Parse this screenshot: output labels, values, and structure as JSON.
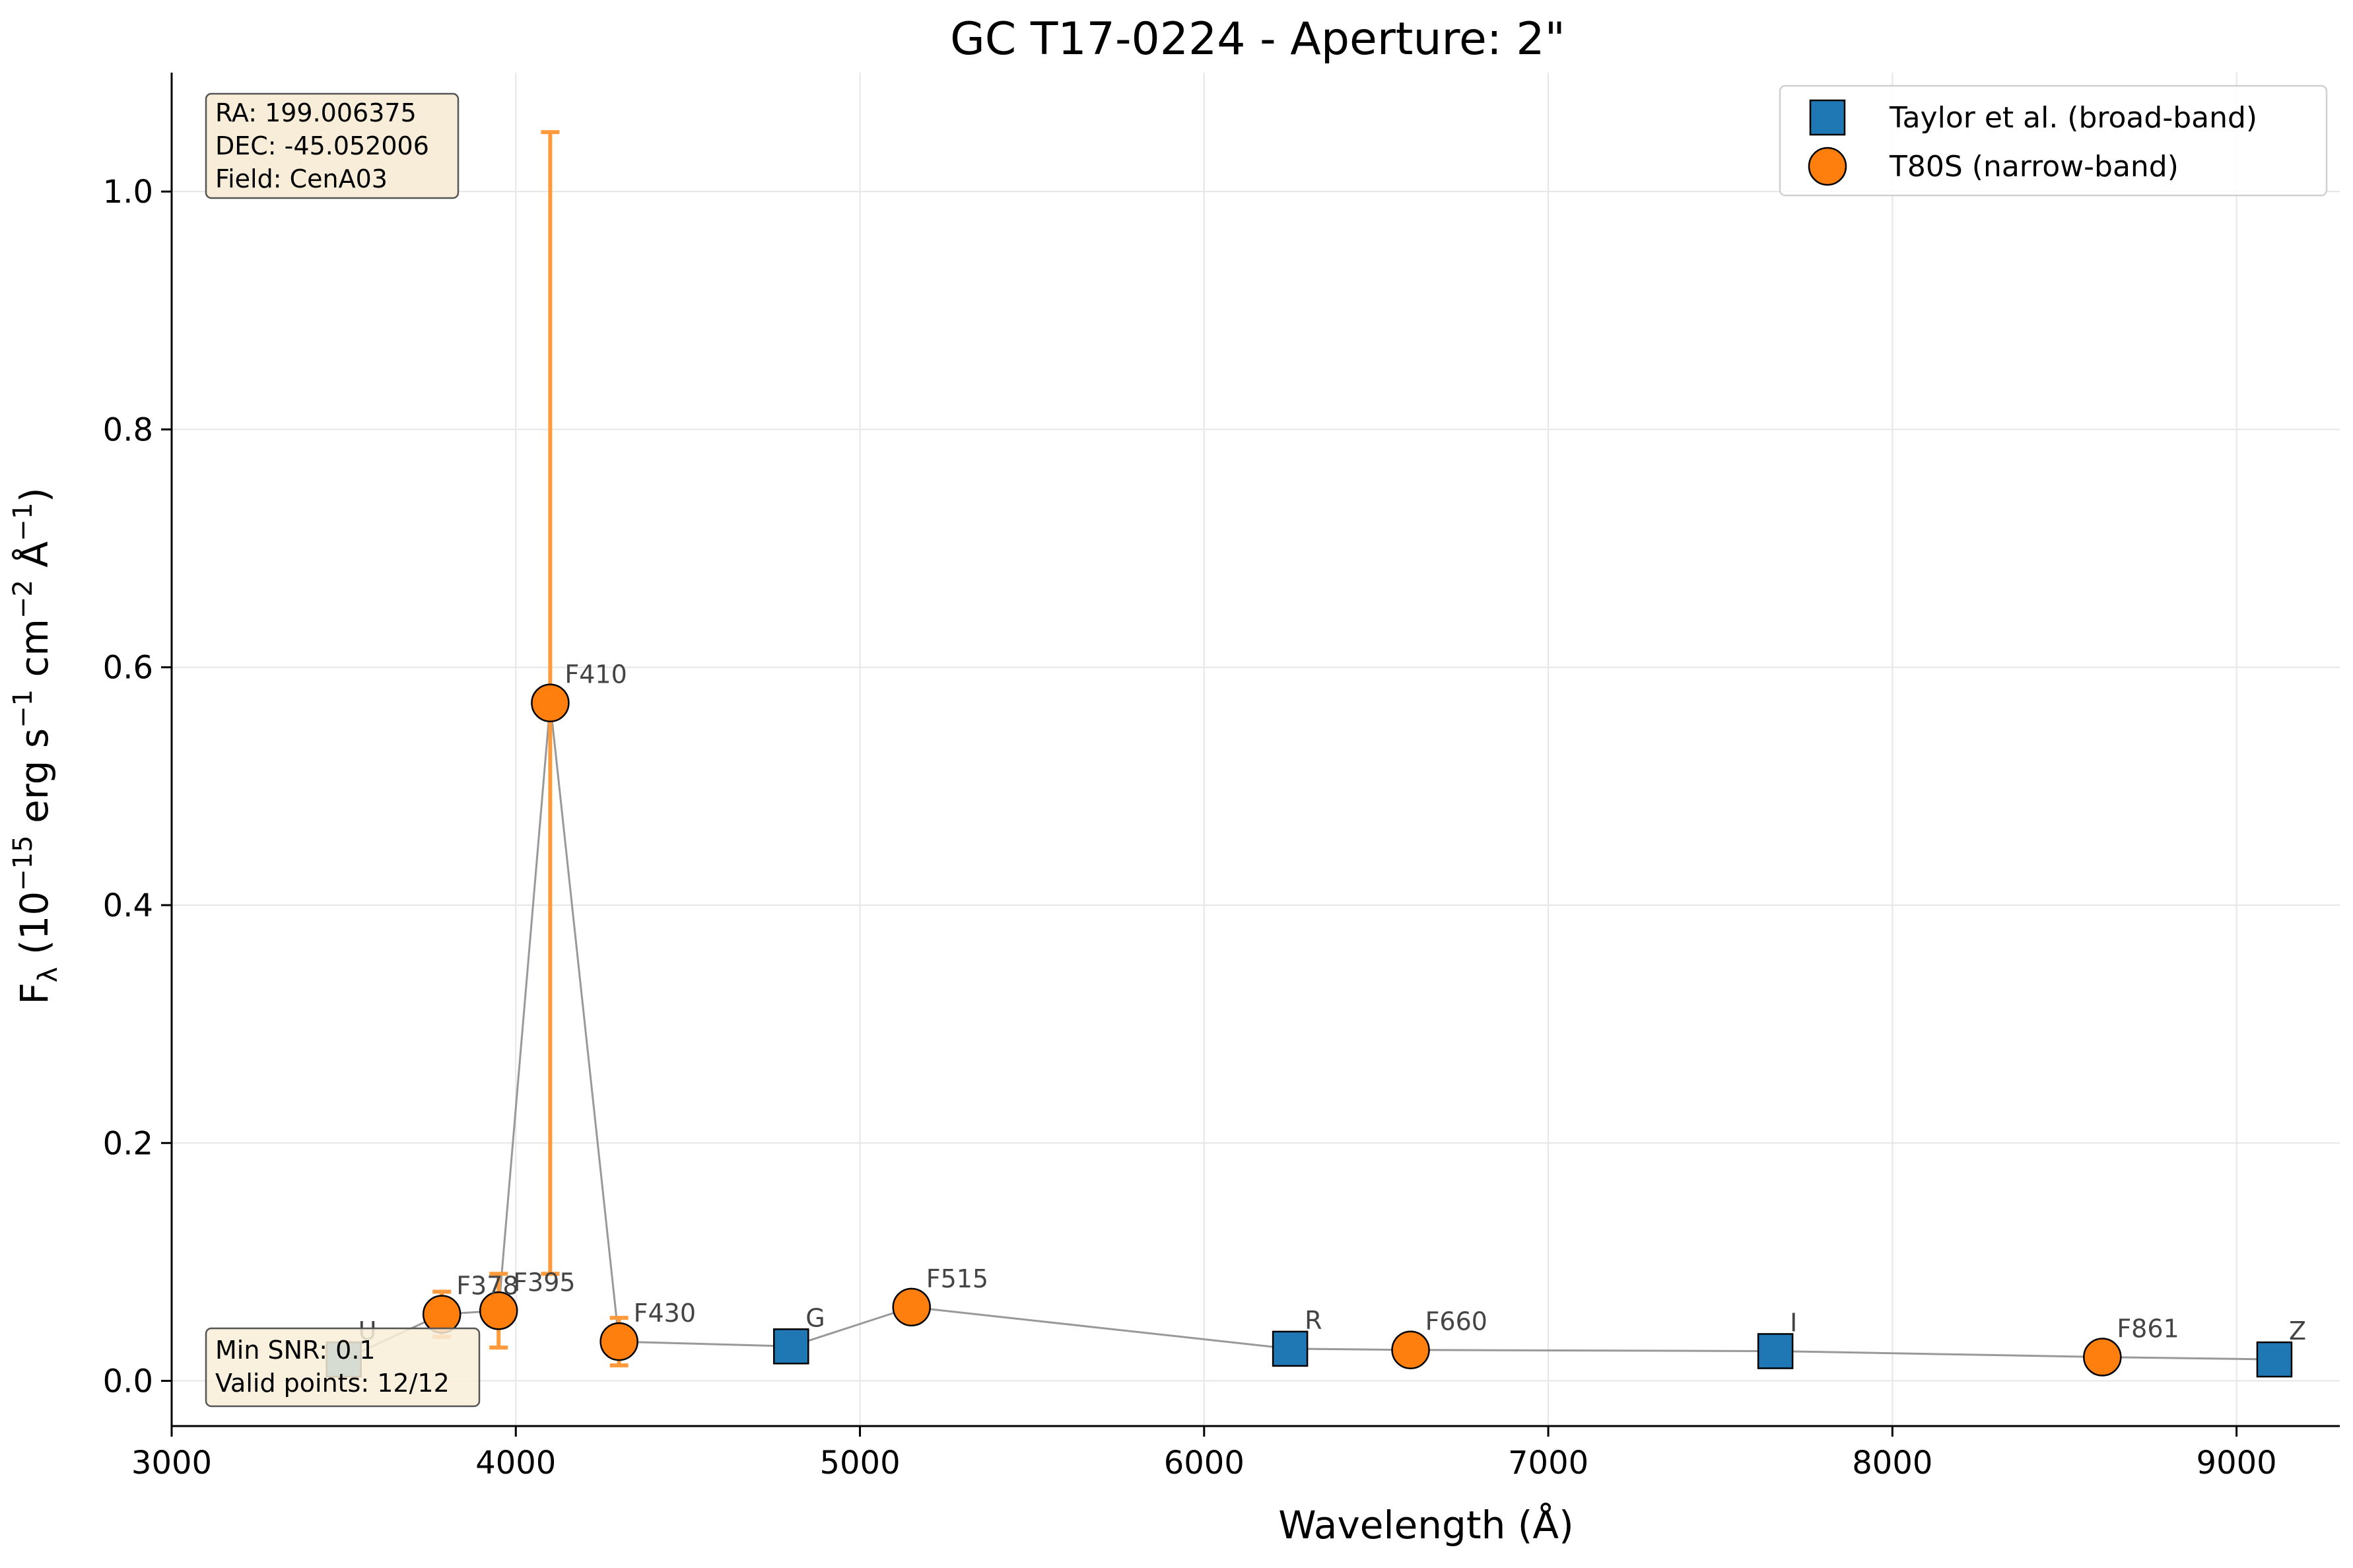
{
  "chart_data": {
    "type": "scatter",
    "title": "GC T17-0224 - Aperture: 2\"",
    "xlabel": "Wavelength (Å)",
    "ylabel": {
      "prefix": "F",
      "sub": "λ",
      "open": " (10",
      "exp1": "−15",
      "mid1": " erg s",
      "exp2": "−1",
      "mid2": " cm",
      "exp3": "−2",
      "mid3": " Å",
      "exp4": "−1",
      "close": ")"
    },
    "xlim": [
      3000,
      9300
    ],
    "ylim": [
      -0.038,
      1.1
    ],
    "xticks": [
      "3000",
      "4000",
      "5000",
      "6000",
      "7000",
      "8000",
      "9000"
    ],
    "xtick_values": [
      3000,
      4000,
      5000,
      6000,
      7000,
      8000,
      9000
    ],
    "yticks": [
      "0.0",
      "0.2",
      "0.4",
      "0.6",
      "0.8",
      "1.0"
    ],
    "ytick_values": [
      0.0,
      0.2,
      0.4,
      0.6,
      0.8,
      1.0
    ],
    "grid": true,
    "legend_placement": "top-right",
    "series": [
      {
        "name": "Taylor et al. (broad-band)",
        "marker": "square",
        "color": "#1f77b4",
        "points": [
          {
            "label": "U",
            "x": 3500,
            "y": 0.018,
            "err": null
          },
          {
            "label": "G",
            "x": 4800,
            "y": 0.029,
            "err": null
          },
          {
            "label": "R",
            "x": 6250,
            "y": 0.027,
            "err": null
          },
          {
            "label": "I",
            "x": 7660,
            "y": 0.025,
            "err": null
          },
          {
            "label": "Z",
            "x": 9110,
            "y": 0.018,
            "err": null
          }
        ]
      },
      {
        "name": "T80S (narrow-band)",
        "marker": "circle",
        "color": "#ff7f0e",
        "points": [
          {
            "label": "F378",
            "x": 3785,
            "y": 0.056,
            "err": 0.019
          },
          {
            "label": "F395",
            "x": 3950,
            "y": 0.059,
            "err": 0.031
          },
          {
            "label": "F410",
            "x": 4100,
            "y": 0.57,
            "err": 0.48
          },
          {
            "label": "F430",
            "x": 4300,
            "y": 0.033,
            "err": 0.02
          },
          {
            "label": "F515",
            "x": 5150,
            "y": 0.062,
            "err": null
          },
          {
            "label": "F660",
            "x": 6600,
            "y": 0.026,
            "err": null
          },
          {
            "label": "F861",
            "x": 8610,
            "y": 0.02,
            "err": null
          }
        ]
      }
    ],
    "line_order": [
      "U",
      "F378",
      "F395",
      "F410",
      "F430",
      "G",
      "F515",
      "R",
      "F660",
      "I",
      "F861",
      "Z"
    ],
    "info_top": [
      "RA: 199.006375",
      "DEC: -45.052006",
      "Field: CenA03"
    ],
    "info_bottom": [
      "Min SNR: 0.1",
      "Valid points: 12/12"
    ],
    "colors": {
      "line": "#999999",
      "grid": "#e6e6e6",
      "errorbar": "#ff9a3c",
      "infobox_fill": "#f8edd8",
      "infobox_stroke": "#555555"
    }
  }
}
